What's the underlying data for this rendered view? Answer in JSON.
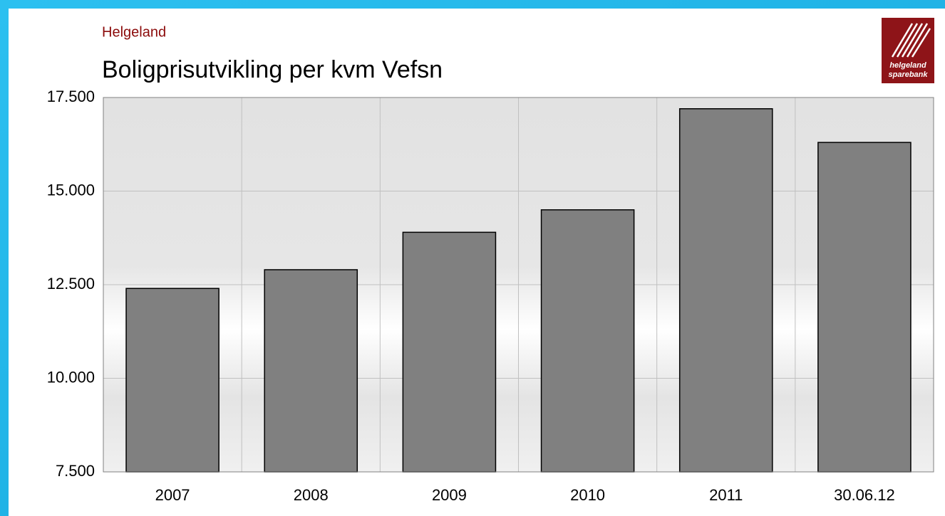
{
  "chart_data": {
    "type": "bar",
    "subtitle": "Helgeland",
    "title": "Boligprisutvikling per kvm Vefsn",
    "categories": [
      "2007",
      "2008",
      "2009",
      "2010",
      "2011",
      "30.06.12"
    ],
    "values": [
      12400,
      12900,
      13900,
      14500,
      17200,
      16300
    ],
    "color": "#808080",
    "ylim": [
      7500,
      17500
    ],
    "yticks": [
      {
        "value": 7500,
        "label": "7.500"
      },
      {
        "value": 10000,
        "label": "10.000"
      },
      {
        "value": 12500,
        "label": "12.500"
      },
      {
        "value": 15000,
        "label": "15.000"
      },
      {
        "value": 17500,
        "label": "17.500"
      }
    ],
    "grid": true,
    "logo": {
      "line1": "helgeland",
      "line2": "sparebank"
    }
  }
}
